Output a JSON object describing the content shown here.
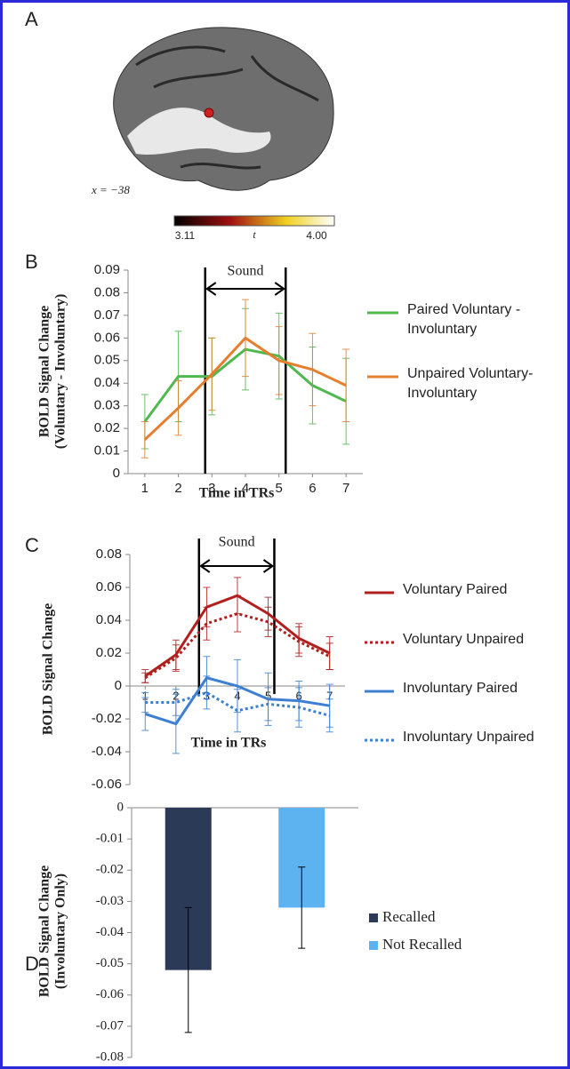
{
  "brain_panel": {
    "panel": "A",
    "slice_label": "x = −38",
    "colorbar": {
      "label": "t",
      "lim": [
        3.11,
        4
      ],
      "ticks": [
        3.11,
        {
          "value": 4,
          "label": "4.00"
        }
      ]
    }
  },
  "chart_data": [
    {
      "type": "line",
      "panel": "B",
      "ylabel": [
        "BOLD Signal Change",
        "(Voluntary - Involuntary)"
      ],
      "xlabel": "Time in TRs",
      "x": [
        1,
        2,
        3,
        4,
        5,
        6,
        7
      ],
      "xticks": [
        1,
        2,
        3,
        4,
        5,
        6,
        7
      ],
      "xlim": [
        0.5,
        7.5
      ],
      "ylim": [
        0,
        0.09
      ],
      "yticks": [
        0,
        0.01,
        0.02,
        0.03,
        0.04,
        0.05,
        0.06,
        0.07,
        0.08,
        0.09
      ],
      "annotation": {
        "text": "Sound",
        "x_range": [
          2.8,
          5.2
        ]
      },
      "series": [
        {
          "name": "Paired Voluntary - Involuntary",
          "color": "#4fb84f",
          "dash": false,
          "values": [
            0.023,
            0.043,
            0.043,
            0.055,
            0.052,
            0.039,
            0.032
          ],
          "errors": [
            0.012,
            0.02,
            0.017,
            0.018,
            0.019,
            0.017,
            0.019
          ]
        },
        {
          "name": "Unpaired Voluntary- Involuntary",
          "color": "#e67e2e",
          "dash": false,
          "values": [
            0.015,
            0.029,
            0.044,
            0.06,
            0.05,
            0.046,
            0.039
          ],
          "errors": [
            0.008,
            0.012,
            0.016,
            0.017,
            0.015,
            0.016,
            0.016
          ]
        }
      ]
    },
    {
      "type": "line",
      "panel": "C",
      "ylabel": [
        "BOLD Signal Change"
      ],
      "xlabel": "Time in TRs",
      "x": [
        1,
        2,
        3,
        4,
        5,
        6,
        7
      ],
      "xticks": [
        1,
        2,
        3,
        4,
        5,
        6,
        7
      ],
      "xlim": [
        0.5,
        7.5
      ],
      "ylim": [
        -0.06,
        0.08
      ],
      "yticks": [
        -0.06,
        -0.04,
        -0.02,
        0,
        0.02,
        0.04,
        0.06,
        0.08
      ],
      "annotation": {
        "text": "Sound",
        "x_range": [
          2.75,
          5.2
        ]
      },
      "series": [
        {
          "name": "Voluntary Paired",
          "color": "#b0201e",
          "dash": false,
          "values": [
            0.006,
            0.019,
            0.048,
            0.055,
            0.044,
            0.029,
            0.02
          ],
          "errors": [
            0.004,
            0.009,
            0.012,
            0.011,
            0.01,
            0.009,
            0.01
          ]
        },
        {
          "name": "Voluntary Unpaired",
          "color": "#b0201e",
          "dash": true,
          "values": [
            0.005,
            0.017,
            0.038,
            0.044,
            0.039,
            0.027,
            0.018
          ],
          "errors": [
            0.003,
            0.008,
            0.01,
            0.011,
            0.009,
            0.009,
            0.008
          ]
        },
        {
          "name": "Involuntary Paired",
          "color": "#3d7fd1",
          "dash": false,
          "values": [
            -0.017,
            -0.023,
            0.005,
            0,
            -0.008,
            -0.009,
            -0.012
          ],
          "errors": [
            0.01,
            0.018,
            0.013,
            0.016,
            0.016,
            0.012,
            0.013
          ]
        },
        {
          "name": "Involuntary Unpaired",
          "color": "#3d7fd1",
          "dash": true,
          "values": [
            -0.01,
            -0.01,
            -0.004,
            -0.015,
            -0.011,
            -0.013,
            -0.018
          ],
          "errors": [
            0.006,
            0.008,
            0.01,
            0.013,
            0.01,
            0.012,
            0.01
          ]
        }
      ]
    },
    {
      "type": "bar",
      "panel": "D",
      "ylabel": [
        "BOLD Signal Change",
        "(Involuntary Only)"
      ],
      "ylim": [
        -0.08,
        0
      ],
      "yticks": [
        -0.08,
        -0.07,
        -0.06,
        -0.05,
        -0.04,
        -0.03,
        -0.02,
        -0.01,
        0
      ],
      "series": [
        {
          "name": "Recalled",
          "color": "#2b3a57",
          "values": [
            -0.052
          ],
          "errors": [
            0.02
          ]
        },
        {
          "name": "Not Recalled",
          "color": "#5cb3ef",
          "values": [
            -0.032
          ],
          "errors": [
            0.013
          ]
        }
      ]
    }
  ]
}
